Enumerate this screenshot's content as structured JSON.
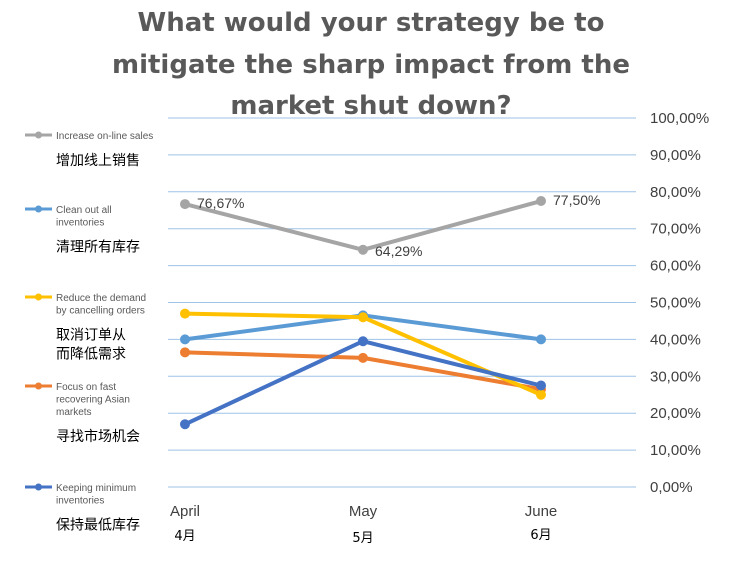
{
  "chart_data": {
    "type": "line",
    "title_lines": [
      "What would your strategy be to",
      "mitigate the sharp impact from the",
      "market shut down?"
    ],
    "categories": [
      {
        "en": "April",
        "cn": "4月"
      },
      {
        "en": "May",
        "cn": "5月"
      },
      {
        "en": "June",
        "cn": "6月"
      }
    ],
    "ylim": [
      0,
      100
    ],
    "ytick_labels": [
      "0,00%",
      "10,00%",
      "20,00%",
      "30,00%",
      "40,00%",
      "50,00%",
      "60,00%",
      "70,00%",
      "80,00%",
      "90,00%",
      "100,00%"
    ],
    "grid": true,
    "legend_position": "left",
    "series": [
      {
        "label_en_lines": [
          "Increase on-line sales"
        ],
        "label_cn_lines": [
          "增加线上销售"
        ],
        "color": "#a5a5a5",
        "values": [
          76.67,
          64.29,
          77.5
        ],
        "data_labels": [
          "76,67%",
          "64,29%",
          "77,50%"
        ]
      },
      {
        "label_en_lines": [
          "Clean out all",
          "inventories"
        ],
        "label_cn_lines": [
          "清理所有库存"
        ],
        "color": "#5b9bd5",
        "values": [
          40,
          46.5,
          40
        ],
        "data_labels": []
      },
      {
        "label_en_lines": [
          "Reduce the demand",
          "by cancelling orders"
        ],
        "label_cn_lines": [
          "取消订单从",
          "而降低需求"
        ],
        "color": "#ffc000",
        "values": [
          47,
          46,
          25
        ],
        "data_labels": []
      },
      {
        "label_en_lines": [
          "Focus on fast",
          "recovering Asian",
          "markets"
        ],
        "label_cn_lines": [
          "寻找市场机会"
        ],
        "color": "#ed7d31",
        "values": [
          36.5,
          35,
          26.5
        ],
        "data_labels": []
      },
      {
        "label_en_lines": [
          "Keeping minimum",
          "inventories"
        ],
        "label_cn_lines": [
          "保持最低库存"
        ],
        "color": "#4472c4",
        "values": [
          17,
          39.5,
          27.5
        ],
        "data_labels": []
      }
    ]
  }
}
